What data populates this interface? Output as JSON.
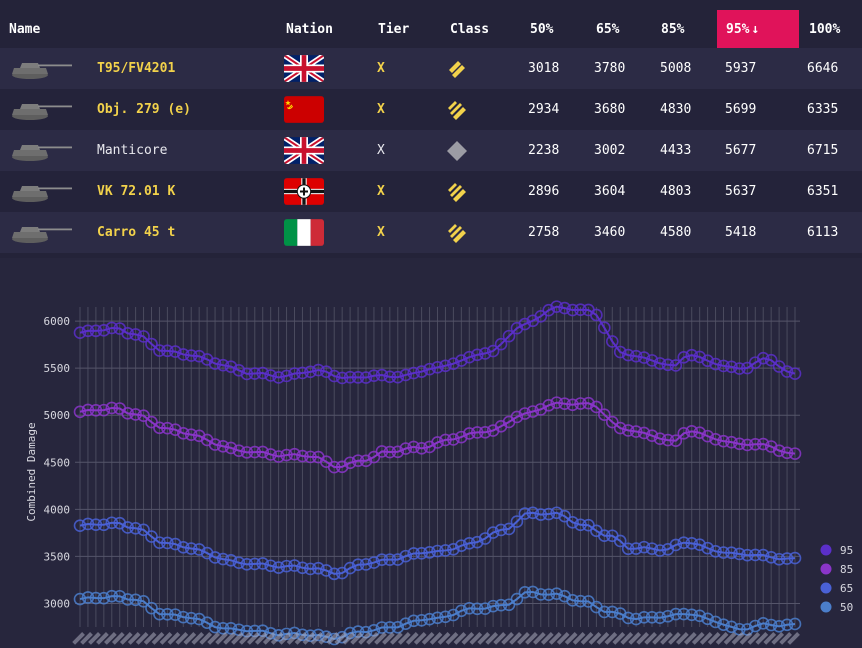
{
  "table": {
    "headers": {
      "name": "Name",
      "nation": "Nation",
      "tier": "Tier",
      "class": "Class",
      "p50": "50%",
      "p65": "65%",
      "p85": "85%",
      "p95": "95%",
      "p100": "100%"
    },
    "sorted_icon": "↓",
    "sorted_column": "95%",
    "rows": [
      {
        "name": "T95/FV4201",
        "nation": "uk-flag",
        "tier": "X",
        "class": "td-icon",
        "p50": "3018",
        "p65": "3780",
        "p85": "5008",
        "p95": "5937",
        "p100": "6646",
        "highlight": true
      },
      {
        "name": "Obj. 279 (e)",
        "nation": "ussr-flag",
        "tier": "X",
        "class": "heavy-icon",
        "p50": "2934",
        "p65": "3680",
        "p85": "4830",
        "p95": "5699",
        "p100": "6335",
        "highlight": true
      },
      {
        "name": "Manticore",
        "nation": "uk-flag",
        "tier": "X",
        "class": "light-icon",
        "p50": "2238",
        "p65": "3002",
        "p85": "4433",
        "p95": "5677",
        "p100": "6715",
        "highlight": false
      },
      {
        "name": "VK 72.01 K",
        "nation": "germany-flag",
        "tier": "X",
        "class": "heavy-icon",
        "p50": "2896",
        "p65": "3604",
        "p85": "4803",
        "p95": "5637",
        "p100": "6351",
        "highlight": true
      },
      {
        "name": "Carro 45 t",
        "nation": "italy-flag",
        "tier": "X",
        "class": "heavy-icon",
        "p50": "2758",
        "p65": "3460",
        "p85": "4580",
        "p95": "5418",
        "p100": "6113",
        "highlight": true
      }
    ]
  },
  "chart_data": {
    "type": "line",
    "ylabel": "Combined Damage",
    "ylim": [
      2750,
      6150
    ],
    "yticks": [
      3000,
      3500,
      4000,
      4500,
      5000,
      5500,
      6000
    ],
    "grid": true,
    "legend_position": "right",
    "points_per_series": 91,
    "series": [
      {
        "name": "95",
        "color": "#5b2fc9",
        "anchors": [
          [
            0,
            5870
          ],
          [
            5,
            5930
          ],
          [
            8,
            5860
          ],
          [
            12,
            5700
          ],
          [
            16,
            5640
          ],
          [
            20,
            5560
          ],
          [
            25,
            5440
          ],
          [
            30,
            5420
          ],
          [
            35,
            5470
          ],
          [
            40,
            5390
          ],
          [
            44,
            5420
          ],
          [
            48,
            5420
          ],
          [
            52,
            5500
          ],
          [
            56,
            5580
          ],
          [
            60,
            5670
          ],
          [
            65,
            5950
          ],
          [
            70,
            6150
          ],
          [
            75,
            6100
          ],
          [
            80,
            5650
          ],
          [
            84,
            5580
          ],
          [
            88,
            5520
          ],
          [
            89,
            5650
          ],
          [
            93,
            5560
          ],
          [
            97,
            5490
          ],
          [
            101,
            5600
          ],
          [
            105,
            5430
          ]
        ]
      },
      {
        "name": "85",
        "color": "#8a35c9",
        "anchors": [
          [
            0,
            5030
          ],
          [
            5,
            5080
          ],
          [
            8,
            5010
          ],
          [
            12,
            4880
          ],
          [
            16,
            4800
          ],
          [
            20,
            4700
          ],
          [
            24,
            4610
          ],
          [
            30,
            4580
          ],
          [
            34,
            4560
          ],
          [
            38,
            4460
          ],
          [
            42,
            4520
          ],
          [
            45,
            4620
          ],
          [
            50,
            4650
          ],
          [
            55,
            4760
          ],
          [
            60,
            4830
          ],
          [
            65,
            5000
          ],
          [
            70,
            5130
          ],
          [
            75,
            5110
          ],
          [
            80,
            4850
          ],
          [
            84,
            4780
          ],
          [
            88,
            4720
          ],
          [
            89,
            4840
          ],
          [
            93,
            4760
          ],
          [
            97,
            4690
          ],
          [
            101,
            4680
          ],
          [
            105,
            4580
          ]
        ]
      },
      {
        "name": "65",
        "color": "#4a61d6",
        "anchors": [
          [
            0,
            3820
          ],
          [
            5,
            3860
          ],
          [
            8,
            3800
          ],
          [
            12,
            3660
          ],
          [
            16,
            3590
          ],
          [
            20,
            3500
          ],
          [
            24,
            3420
          ],
          [
            30,
            3400
          ],
          [
            34,
            3370
          ],
          [
            38,
            3330
          ],
          [
            42,
            3420
          ],
          [
            46,
            3480
          ],
          [
            52,
            3550
          ],
          [
            57,
            3620
          ],
          [
            62,
            3780
          ],
          [
            66,
            3950
          ],
          [
            70,
            3960
          ],
          [
            74,
            3820
          ],
          [
            78,
            3720
          ],
          [
            81,
            3580
          ],
          [
            86,
            3580
          ],
          [
            89,
            3650
          ],
          [
            93,
            3570
          ],
          [
            97,
            3520
          ],
          [
            101,
            3500
          ],
          [
            105,
            3470
          ]
        ]
      },
      {
        "name": "50",
        "color": "#4b7ecb",
        "anchors": [
          [
            0,
            3040
          ],
          [
            5,
            3080
          ],
          [
            8,
            3040
          ],
          [
            12,
            2900
          ],
          [
            16,
            2850
          ],
          [
            20,
            2760
          ],
          [
            24,
            2710
          ],
          [
            30,
            2680
          ],
          [
            34,
            2660
          ],
          [
            37,
            2640
          ],
          [
            42,
            2700
          ],
          [
            46,
            2760
          ],
          [
            52,
            2840
          ],
          [
            57,
            2930
          ],
          [
            62,
            2980
          ],
          [
            66,
            3110
          ],
          [
            70,
            3100
          ],
          [
            74,
            3010
          ],
          [
            78,
            2910
          ],
          [
            82,
            2830
          ],
          [
            86,
            2870
          ],
          [
            89,
            2890
          ],
          [
            93,
            2820
          ],
          [
            97,
            2720
          ],
          [
            101,
            2780
          ],
          [
            105,
            2770
          ]
        ]
      }
    ]
  }
}
